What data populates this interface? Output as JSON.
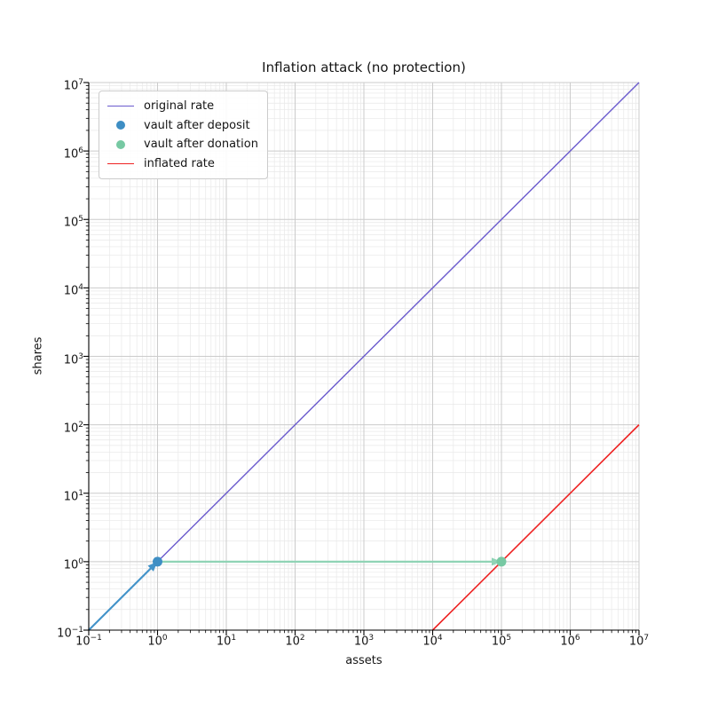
{
  "figure": {
    "title": "Inflation attack (no protection)",
    "xlabel": "assets",
    "ylabel": "shares"
  },
  "chart_data": {
    "type": "line",
    "title": "Inflation attack (no protection)",
    "xlabel": "assets",
    "ylabel": "shares",
    "x_scale": "log",
    "y_scale": "log",
    "xlim": [
      0.1,
      10000000
    ],
    "ylim": [
      0.1,
      10000000
    ],
    "tick_base": "10",
    "x_tick_exponents": [
      -1,
      0,
      1,
      2,
      3,
      4,
      5,
      6,
      7
    ],
    "y_tick_exponents": [
      -1,
      0,
      1,
      2,
      3,
      4,
      5,
      6,
      7
    ],
    "grid": {
      "major_color": "#cbcbcb",
      "minor_color": "#e8e8e8",
      "minor": true
    },
    "axis_color": "#000000",
    "series": [
      {
        "name": "original rate",
        "kind": "line",
        "color": "#6A5ACD",
        "width": 1.4,
        "points": [
          [
            0.1,
            0.1
          ],
          [
            10000000,
            10000000
          ]
        ]
      },
      {
        "name": "inflated rate",
        "kind": "line",
        "color": "#EE2222",
        "width": 1.6,
        "points": [
          [
            10000,
            0.1
          ],
          [
            10000000,
            100
          ]
        ]
      },
      {
        "name": "deposit arrow",
        "kind": "arrow",
        "color": "#4393C9",
        "width": 2.2,
        "points": [
          [
            0.1,
            0.1
          ],
          [
            1,
            1
          ]
        ]
      },
      {
        "name": "donation arrow",
        "kind": "arrow",
        "color": "#8FD3B5",
        "width": 2.2,
        "points": [
          [
            1,
            1
          ],
          [
            100000,
            1
          ]
        ]
      },
      {
        "name": "vault after deposit",
        "kind": "scatter",
        "color": "#3E8EC4",
        "radius": 5.5,
        "points": [
          [
            1,
            1
          ]
        ]
      },
      {
        "name": "vault after donation",
        "kind": "scatter",
        "color": "#77C9A3",
        "radius": 5.5,
        "points": [
          [
            100000,
            1
          ]
        ]
      }
    ],
    "legend": {
      "position": "upper left",
      "items": [
        {
          "label": "original rate",
          "swatch": "line",
          "color": "#6A5ACD"
        },
        {
          "label": "vault after deposit",
          "swatch": "dot",
          "color": "#3E8EC4"
        },
        {
          "label": "vault after donation",
          "swatch": "dot",
          "color": "#77C9A3"
        },
        {
          "label": "inflated rate",
          "swatch": "line",
          "color": "#EE2222"
        }
      ]
    }
  }
}
